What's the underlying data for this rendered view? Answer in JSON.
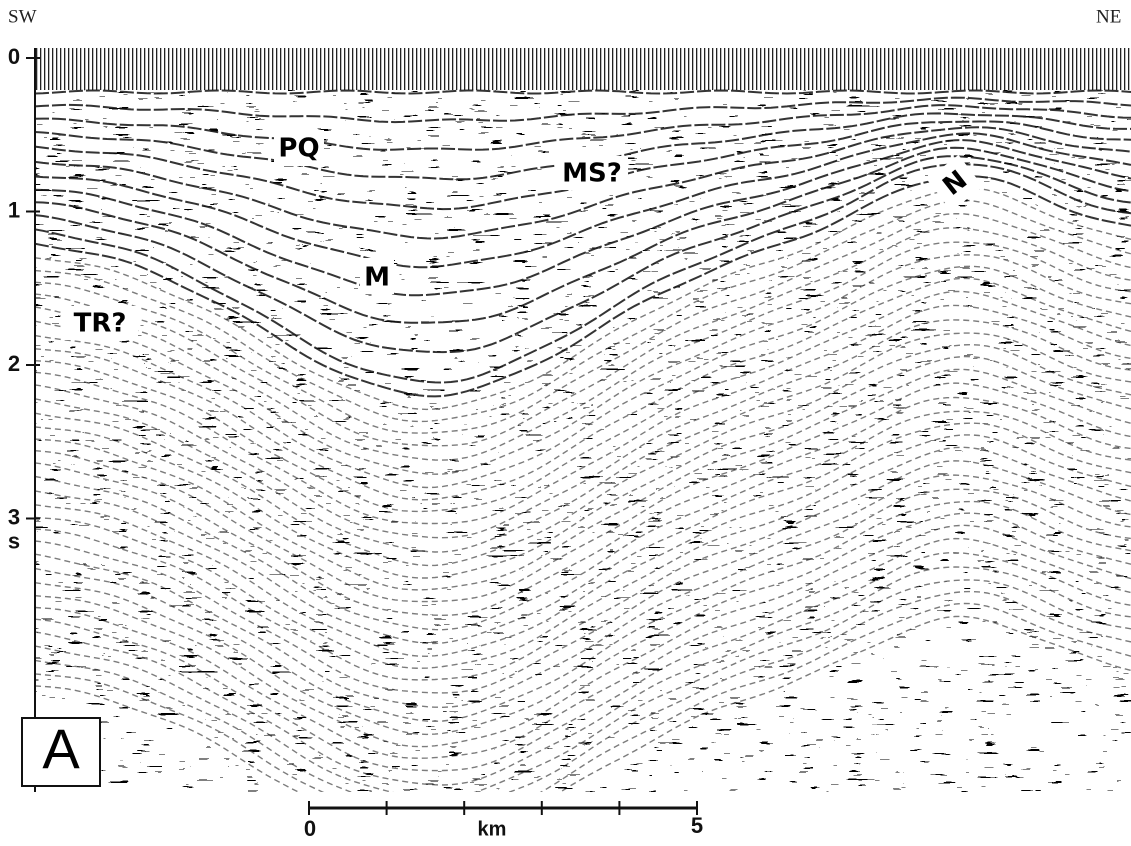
{
  "header": {
    "left": "SW",
    "right": "NE"
  },
  "time_axis": {
    "ticks": [
      0,
      1,
      2,
      3
    ],
    "unit": "s"
  },
  "annotations": [
    {
      "label": "PQ"
    },
    {
      "label": "MS?"
    },
    {
      "label": "M"
    },
    {
      "label": "N"
    },
    {
      "label": "TR?"
    }
  ],
  "panel_label": "A",
  "scale_bar": {
    "start": "0",
    "unit": "km",
    "end": "5"
  }
}
